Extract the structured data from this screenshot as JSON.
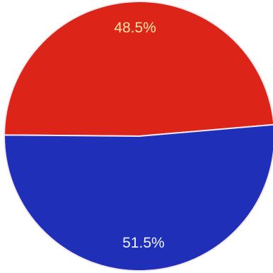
{
  "chart_data": {
    "type": "pie",
    "title": "",
    "labels": [
      "",
      ""
    ],
    "values": [
      48.5,
      51.5
    ],
    "value_labels": [
      "48.5%",
      "51.5%"
    ],
    "colors": [
      "#dd2418",
      "#1f2fb8"
    ],
    "label_colors": [
      "#f5e6a8",
      "#eef3ff"
    ],
    "edge_color": "#f4e8f0",
    "legend": "none"
  }
}
